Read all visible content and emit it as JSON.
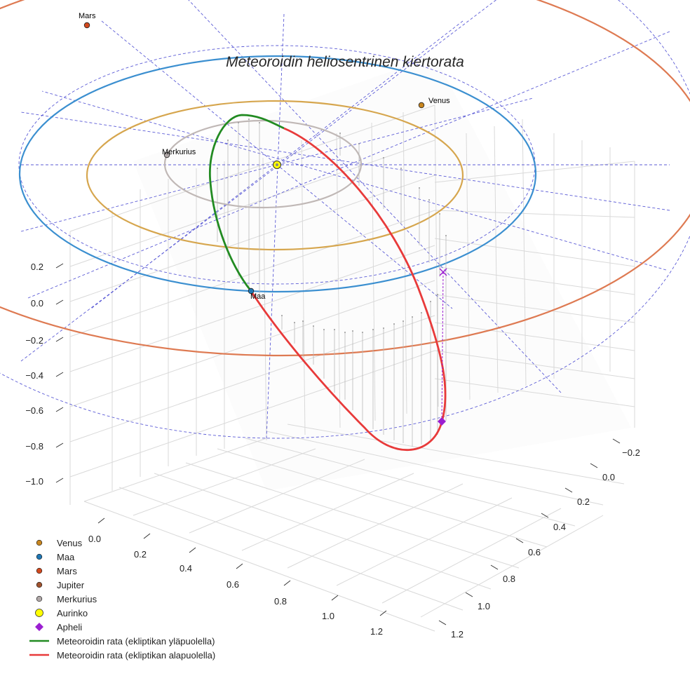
{
  "chart_data": {
    "type": "line",
    "title": "Meteoroidin heliosentrinen kiertorata",
    "axes": {
      "x_ticks": [
        "0.0",
        "0.2",
        "0.4",
        "0.6",
        "0.8",
        "1.0",
        "1.2"
      ],
      "y_ticks": [
        "−0.2",
        "0.0",
        "0.2",
        "0.4",
        "0.6",
        "0.8",
        "1.0",
        "1.2"
      ],
      "z_ticks": [
        "0.2",
        "0.0",
        "−0.2",
        "−0.4",
        "−0.6",
        "−0.8",
        "−1.0"
      ],
      "grid": true
    },
    "planets": [
      {
        "name": "Venus",
        "label": "Venus",
        "color": "#c8861f"
      },
      {
        "name": "Maa",
        "label": "Maa",
        "color": "#1f77b4"
      },
      {
        "name": "Mars",
        "label": "Mars",
        "color": "#d2491e"
      },
      {
        "name": "Jupiter",
        "label": "",
        "color": "#a0522d"
      },
      {
        "name": "Merkurius",
        "label": "Merkurius",
        "color": "#b0a8a8"
      }
    ],
    "orbit_colors": {
      "Merkurius": "#c0b8b6",
      "Venus": "#d6a64e",
      "Maa": "#3b8fd0",
      "Mars": "#de7a52"
    },
    "sun": {
      "name": "Aurinko",
      "color": "#ffff00"
    },
    "aphelion": {
      "name": "Apheli",
      "color": "#9b1fd1"
    },
    "meteoroid_orbit": [
      {
        "name": "Meteoroidin rata (ekliptikan yläpuolella)",
        "color": "#228b22"
      },
      {
        "name": "Meteoroidin rata (ekliptikan alapuolella)",
        "color": "#e83a3a"
      }
    ],
    "legend": {
      "placement": "lower-left",
      "entries": [
        {
          "label": "Venus",
          "marker": "circle",
          "color": "#c8861f"
        },
        {
          "label": "Maa",
          "marker": "circle",
          "color": "#1f77b4"
        },
        {
          "label": "Mars",
          "marker": "circle",
          "color": "#d2491e"
        },
        {
          "label": "Jupiter",
          "marker": "circle",
          "color": "#a0522d"
        },
        {
          "label": "Merkurius",
          "marker": "circle",
          "color": "#b0a8a8"
        },
        {
          "label": "Aurinko",
          "marker": "big-circle",
          "color": "#ffff00"
        },
        {
          "label": "Apheli",
          "marker": "diamond",
          "color": "#9b1fd1"
        },
        {
          "label": "Meteoroidin rata (ekliptikan yläpuolella)",
          "marker": "line",
          "color": "#228b22"
        },
        {
          "label": "Meteoroidin rata (ekliptikan alapuolella)",
          "marker": "line",
          "color": "#e83a3a"
        }
      ]
    }
  }
}
